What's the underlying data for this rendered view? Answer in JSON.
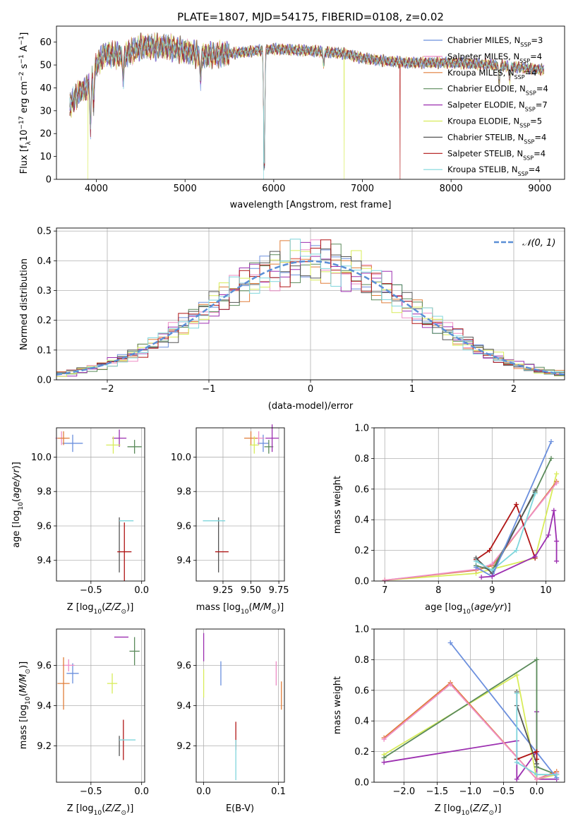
{
  "figure": {
    "title": "PLATE=1807, MJD=54175, FIBERID=0108, z=0.02"
  },
  "colors": {
    "chabrier_miles": "#6b8fdd",
    "salpeter_miles": "#ee8ec6",
    "kroupa_miles": "#e07e3a",
    "chabrier_elodie": "#5a8a5a",
    "salpeter_elodie": "#9c2fb0",
    "kroupa_elodie": "#d8ec5a",
    "chabrier_stelib": "#555555",
    "salpeter_stelib": "#b01515",
    "kroupa_stelib": "#7fd6dc",
    "gauss": "#5b8fd6"
  },
  "chart_data": [
    {
      "id": "spectrum",
      "type": "line",
      "title": "PLATE=1807, MJD=54175, FIBERID=0108, z=0.02",
      "xlabel": "wavelength [Angstrom, rest frame]",
      "ylabel": "Flux [f_λ 10^-17 erg cm^-2 s^-1 A^-1]",
      "xlim": [
        3550,
        9280
      ],
      "ylim": [
        0,
        67
      ],
      "xticks": [
        4000,
        5000,
        6000,
        7000,
        8000,
        9000
      ],
      "yticks": [
        0,
        10,
        20,
        30,
        40,
        50,
        60
      ],
      "grid": false,
      "legend_position": "top-right",
      "continuum": {
        "wavelength": [
          3700,
          3800,
          3900,
          4000,
          4100,
          4300,
          4500,
          4800,
          5000,
          5200,
          5500,
          6000,
          6500,
          6800,
          7000,
          7200,
          7500,
          8000,
          8500,
          9000
        ],
        "flux": [
          32,
          38,
          40,
          50,
          55,
          54,
          58,
          58,
          56,
          54,
          55,
          57,
          56,
          55,
          53,
          52,
          51,
          51,
          50,
          48
        ]
      },
      "absorption_features": [
        {
          "wavelength": 3934,
          "depth": 20
        },
        {
          "wavelength": 3969,
          "depth": 14
        },
        {
          "wavelength": 4304,
          "depth": 10
        },
        {
          "wavelength": 5175,
          "depth": 10
        },
        {
          "wavelength": 5893,
          "depth": 55
        },
        {
          "wavelength": 6563,
          "depth": 6
        },
        {
          "wavelength": 8542,
          "depth": 8
        },
        {
          "wavelength": 8662,
          "depth": 6
        }
      ],
      "drops_to_zero": [
        {
          "series": "Kroupa ELODIE",
          "wavelength": 3905
        },
        {
          "series": "Kroupa STELIB",
          "wavelength": 5885
        },
        {
          "series": "Kroupa ELODIE",
          "wavelength": 6795
        },
        {
          "series": "Salpeter STELIB",
          "wavelength": 7425
        }
      ],
      "series": [
        {
          "name": "Chabrier MILES, N_SSP=3",
          "color_key": "chabrier_miles"
        },
        {
          "name": "Salpeter MILES, N_SSP=4",
          "color_key": "salpeter_miles"
        },
        {
          "name": "Kroupa MILES, N_SSP=4",
          "color_key": "kroupa_miles"
        },
        {
          "name": "Chabrier ELODIE, N_SSP=4",
          "color_key": "chabrier_elodie"
        },
        {
          "name": "Salpeter ELODIE, N_SSP=7",
          "color_key": "salpeter_elodie"
        },
        {
          "name": "Kroupa ELODIE, N_SSP=5",
          "color_key": "kroupa_elodie"
        },
        {
          "name": "Chabrier STELIB, N_SSP=4",
          "color_key": "chabrier_stelib"
        },
        {
          "name": "Salpeter STELIB, N_SSP=4",
          "color_key": "salpeter_stelib"
        },
        {
          "name": "Kroupa STELIB, N_SSP=4",
          "color_key": "kroupa_stelib"
        }
      ]
    },
    {
      "id": "residuals",
      "type": "line",
      "xlabel": "(data-model)/error",
      "ylabel": "Normed distribution",
      "xlim": [
        -2.5,
        2.5
      ],
      "ylim": [
        0,
        0.51
      ],
      "xticks": [
        -2,
        -1,
        0,
        1,
        2
      ],
      "yticks": [
        0.0,
        0.1,
        0.2,
        0.3,
        0.4,
        0.5
      ],
      "grid": true,
      "legend_position": "top-right",
      "legend": [
        {
          "name": "𝒩(0, 1)",
          "color_key": "gauss"
        }
      ],
      "bin_width": 0.1,
      "series_colors": [
        "chabrier_miles",
        "salpeter_miles",
        "kroupa_miles",
        "chabrier_elodie",
        "salpeter_elodie",
        "kroupa_elodie",
        "chabrier_stelib",
        "salpeter_stelib",
        "kroupa_stelib"
      ]
    },
    {
      "id": "age_vs_z",
      "type": "scatter",
      "xlabel": "Z [log10(Z/Z_⊙)]",
      "ylabel": "age  [log10(age/yr)]",
      "xlim": [
        -0.84,
        0.03
      ],
      "ylim": [
        9.28,
        10.17
      ],
      "xticks": [
        -0.5,
        0.0
      ],
      "yticks": [
        9.4,
        9.6,
        9.8,
        10.0
      ],
      "grid": true,
      "points": [
        {
          "c": "chabrier_miles",
          "x": -0.68,
          "y": 10.08,
          "xerr": 0.1,
          "yerr": 0.05
        },
        {
          "c": "salpeter_miles",
          "x": -0.79,
          "y": 10.11,
          "xerr": 0.06,
          "yerr": 0.04
        },
        {
          "c": "kroupa_miles",
          "x": -0.77,
          "y": 10.11,
          "xerr": 0.06,
          "yerr": 0.04
        },
        {
          "c": "chabrier_elodie",
          "x": -0.07,
          "y": 10.06,
          "xerr": 0.07,
          "yerr": 0.04
        },
        {
          "c": "salpeter_elodie",
          "x": -0.22,
          "y": 10.11,
          "xerr": 0.07,
          "yerr": 0.05
        },
        {
          "c": "kroupa_elodie",
          "x": -0.28,
          "y": 10.07,
          "xerr": 0.07,
          "yerr": 0.05
        },
        {
          "c": "chabrier_stelib",
          "x": -0.22,
          "y": 9.49,
          "xerr": 0.0,
          "yerr": 0.16
        },
        {
          "c": "salpeter_stelib",
          "x": -0.17,
          "y": 9.45,
          "xerr": 0.07,
          "yerr": 0.17
        },
        {
          "c": "kroupa_stelib",
          "x": -0.15,
          "y": 9.63,
          "xerr": 0.07,
          "yerr": 0.0
        }
      ]
    },
    {
      "id": "age_vs_mass",
      "type": "scatter",
      "xlabel": "mass [log10(M/M_⊙)]",
      "xlim": [
        9.01,
        9.8
      ],
      "ylim": [
        9.28,
        10.17
      ],
      "xticks": [
        9.25,
        9.5,
        9.75
      ],
      "yticks": [
        9.4,
        9.6,
        9.8,
        10.0
      ],
      "grid": true,
      "points": [
        {
          "c": "chabrier_miles",
          "x": 9.61,
          "y": 10.08,
          "xerr": 0.05,
          "yerr": 0.05
        },
        {
          "c": "salpeter_miles",
          "x": 9.57,
          "y": 10.11,
          "xerr": 0.05,
          "yerr": 0.04
        },
        {
          "c": "kroupa_miles",
          "x": 9.5,
          "y": 10.11,
          "xerr": 0.06,
          "yerr": 0.04
        },
        {
          "c": "chabrier_elodie",
          "x": 9.66,
          "y": 10.06,
          "xerr": 0.04,
          "yerr": 0.04
        },
        {
          "c": "salpeter_elodie",
          "x": 9.69,
          "y": 10.11,
          "xerr": 0.06,
          "yerr": 0.08
        },
        {
          "c": "kroupa_elodie",
          "x": 9.53,
          "y": 10.07,
          "xerr": 0.04,
          "yerr": 0.05
        },
        {
          "c": "chabrier_stelib",
          "x": 9.21,
          "y": 9.49,
          "xerr": 0.0,
          "yerr": 0.16
        },
        {
          "c": "salpeter_stelib",
          "x": 9.24,
          "y": 9.45,
          "xerr": 0.06,
          "yerr": 0.0
        },
        {
          "c": "kroupa_stelib",
          "x": 9.17,
          "y": 9.63,
          "xerr": 0.1,
          "yerr": 0.0
        }
      ]
    },
    {
      "id": "massweight_vs_age",
      "type": "line",
      "xlabel": "age  [log10(age/yr)]",
      "ylabel": "mass weight",
      "xlim": [
        6.8,
        10.35
      ],
      "ylim": [
        0,
        1
      ],
      "xticks": [
        7,
        8,
        9,
        10
      ],
      "yticks": [
        0.0,
        0.2,
        0.4,
        0.6,
        0.8,
        1.0
      ],
      "grid": true,
      "series": [
        {
          "c": "kroupa_elodie",
          "points": [
            [
              7.0,
              0.005
            ],
            [
              8.7,
              0.05
            ],
            [
              9.8,
              0.15
            ],
            [
              10.2,
              0.7
            ]
          ]
        },
        {
          "c": "kroupa_miles",
          "points": [
            [
              7.0,
              0.005
            ],
            [
              8.7,
              0.07
            ],
            [
              9.0,
              0.1
            ],
            [
              10.2,
              0.65
            ]
          ]
        },
        {
          "c": "salpeter_miles",
          "points": [
            [
              7.0,
              0.005
            ],
            [
              8.7,
              0.075
            ],
            [
              9.0,
              0.11
            ],
            [
              10.2,
              0.64
            ]
          ]
        },
        {
          "c": "salpeter_stelib",
          "points": [
            [
              8.7,
              0.14
            ],
            [
              8.95,
              0.2
            ],
            [
              9.45,
              0.5
            ],
            [
              9.8,
              0.15
            ]
          ]
        },
        {
          "c": "chabrier_elodie",
          "points": [
            [
              8.7,
              0.1
            ],
            [
              9.0,
              0.07
            ],
            [
              9.8,
              0.58
            ],
            [
              10.1,
              0.8
            ]
          ]
        },
        {
          "c": "chabrier_stelib",
          "points": [
            [
              8.7,
              0.15
            ],
            [
              9.0,
              0.05
            ],
            [
              9.8,
              0.59
            ]
          ]
        },
        {
          "c": "kroupa_stelib",
          "points": [
            [
              8.7,
              0.13
            ],
            [
              9.0,
              0.07
            ],
            [
              9.45,
              0.2
            ],
            [
              9.8,
              0.57
            ]
          ]
        },
        {
          "c": "chabrier_miles",
          "points": [
            [
              8.7,
              0.09
            ],
            [
              9.0,
              0.03
            ],
            [
              10.1,
              0.91
            ]
          ]
        },
        {
          "c": "salpeter_elodie",
          "points": [
            [
              8.8,
              0.025
            ],
            [
              9.0,
              0.03
            ],
            [
              9.8,
              0.16
            ],
            [
              10.05,
              0.3
            ],
            [
              10.15,
              0.46
            ],
            [
              10.2,
              0.26
            ],
            [
              10.2,
              0.13
            ]
          ]
        }
      ]
    },
    {
      "id": "mass_vs_z",
      "type": "scatter",
      "xlabel": "Z [log10(Z/Z_⊙)]",
      "ylabel": "mass [log10(M/M_⊙)]",
      "xlim": [
        -0.84,
        0.03
      ],
      "ylim": [
        9.02,
        9.78
      ],
      "xticks": [
        -0.5,
        0.0
      ],
      "yticks": [
        9.2,
        9.4,
        9.6
      ],
      "grid": true,
      "points": [
        {
          "c": "chabrier_miles",
          "x": -0.68,
          "y": 9.56,
          "xerr": 0.06,
          "yerr": 0.05
        },
        {
          "c": "salpeter_miles",
          "x": -0.72,
          "y": 9.6,
          "xerr": 0.06,
          "yerr": 0.03
        },
        {
          "c": "kroupa_miles",
          "x": -0.77,
          "y": 9.51,
          "xerr": 0.06,
          "yerr": 0.13
        },
        {
          "c": "chabrier_elodie",
          "x": -0.07,
          "y": 9.67,
          "xerr": 0.05,
          "yerr": 0.07
        },
        {
          "c": "salpeter_elodie",
          "x": -0.2,
          "y": 9.74,
          "xerr": 0.07,
          "yerr": 0.0
        },
        {
          "c": "kroupa_elodie",
          "x": -0.29,
          "y": 9.51,
          "xerr": 0.05,
          "yerr": 0.05
        },
        {
          "c": "chabrier_stelib",
          "x": -0.22,
          "y": 9.2,
          "xerr": 0.0,
          "yerr": 0.05
        },
        {
          "c": "salpeter_stelib",
          "x": -0.18,
          "y": 9.23,
          "xerr": 0.0,
          "yerr": 0.1
        },
        {
          "c": "kroupa_stelib",
          "x": -0.14,
          "y": 9.23,
          "xerr": 0.08,
          "yerr": 0.0
        }
      ]
    },
    {
      "id": "mass_vs_ebv",
      "type": "scatter",
      "xlabel": "E(B-V)",
      "xlim": [
        -0.01,
        0.108
      ],
      "ylim": [
        9.02,
        9.78
      ],
      "xticks": [
        0.0,
        0.1
      ],
      "yticks": [
        9.2,
        9.4,
        9.6
      ],
      "grid": true,
      "points": [
        {
          "c": "chabrier_miles",
          "x": 0.023,
          "y": 9.56,
          "xerr": 0.0,
          "yerr": 0.06
        },
        {
          "c": "salpeter_miles",
          "x": 0.097,
          "y": 9.56,
          "xerr": 0.0,
          "yerr": 0.06
        },
        {
          "c": "kroupa_miles",
          "x": 0.104,
          "y": 9.45,
          "xerr": 0.0,
          "yerr": 0.07
        },
        {
          "c": "salpeter_elodie",
          "x": 0.0,
          "y": 9.69,
          "xerr": 0.0,
          "yerr": 0.07
        },
        {
          "c": "kroupa_elodie",
          "x": 0.0,
          "y": 9.51,
          "xerr": 0.0,
          "yerr": 0.07
        },
        {
          "c": "salpeter_stelib",
          "x": 0.043,
          "y": 9.25,
          "xerr": 0.0,
          "yerr": 0.07
        },
        {
          "c": "kroupa_stelib",
          "x": 0.043,
          "y": 9.13,
          "xerr": 0.0,
          "yerr": 0.1
        }
      ]
    },
    {
      "id": "massweight_vs_z",
      "type": "line",
      "xlabel": "Z [log10(Z/Z_⊙)]",
      "ylabel": "mass weight",
      "xlim": [
        -2.45,
        0.42
      ],
      "ylim": [
        0,
        1
      ],
      "xticks": [
        -2.0,
        -1.5,
        -1.0,
        -0.5,
        0.0
      ],
      "yticks": [
        0.0,
        0.2,
        0.4,
        0.6,
        0.8,
        1.0
      ],
      "grid": true,
      "series": [
        {
          "c": "salpeter_elodie",
          "points": [
            [
              -2.3,
              0.13
            ],
            [
              -0.3,
              0.27
            ],
            [
              -0.3,
              0.02
            ],
            [
              0.0,
              0.2
            ],
            [
              0.0,
              0.46
            ],
            [
              0.0,
              0.02
            ],
            [
              0.3,
              0.02
            ]
          ]
        },
        {
          "c": "kroupa_elodie",
          "points": [
            [
              -2.3,
              0.18
            ],
            [
              -0.3,
              0.7
            ],
            [
              0.0,
              0.02
            ],
            [
              0.3,
              0.05
            ]
          ]
        },
        {
          "c": "chabrier_elodie",
          "points": [
            [
              -2.3,
              0.16
            ],
            [
              0.0,
              0.8
            ],
            [
              0.0,
              0.1
            ],
            [
              0.3,
              0.05
            ]
          ]
        },
        {
          "c": "kroupa_miles",
          "points": [
            [
              -2.3,
              0.29
            ],
            [
              -1.3,
              0.65
            ],
            [
              0.0,
              0.02
            ],
            [
              0.3,
              0.07
            ]
          ]
        },
        {
          "c": "salpeter_miles",
          "points": [
            [
              -2.3,
              0.28
            ],
            [
              -1.3,
              0.64
            ],
            [
              0.0,
              0.02
            ],
            [
              0.3,
              0.06
            ]
          ]
        },
        {
          "c": "chabrier_miles",
          "points": [
            [
              -1.3,
              0.91
            ],
            [
              0.3,
              0.03
            ]
          ]
        },
        {
          "c": "salpeter_stelib",
          "points": [
            [
              -0.3,
              0.15
            ],
            [
              0.0,
              0.2
            ],
            [
              0.0,
              0.15
            ]
          ]
        },
        {
          "c": "chabrier_stelib",
          "points": [
            [
              -0.3,
              0.59
            ],
            [
              -0.3,
              0.5
            ],
            [
              0.0,
              0.12
            ]
          ]
        },
        {
          "c": "kroupa_stelib",
          "points": [
            [
              -0.3,
              0.58
            ],
            [
              -0.3,
              0.13
            ],
            [
              0.0,
              0.05
            ],
            [
              0.3,
              0.05
            ]
          ]
        }
      ]
    }
  ]
}
